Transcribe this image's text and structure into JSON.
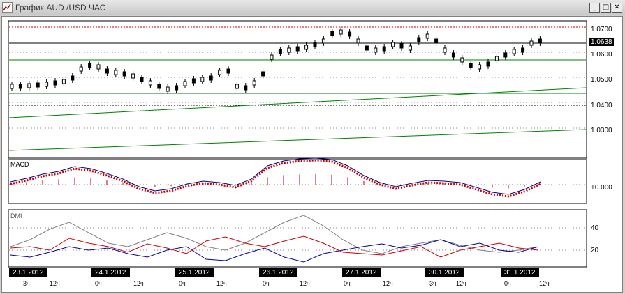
{
  "window": {
    "title": "График AUD /USD  ЧАС",
    "buttons": {
      "minimize": "_",
      "maximize": "□",
      "close": "✕"
    }
  },
  "price_panel": {
    "price_labels": [
      "1.0700",
      "1.0600",
      "1.0500",
      "1.0400",
      "1.0300"
    ],
    "current_price": "1.0638"
  },
  "macd_panel": {
    "label": "MACD",
    "zero_label": "+0.000"
  },
  "dmi_panel": {
    "label": "DMI",
    "level_labels": [
      "40",
      "20"
    ]
  },
  "time_axis": {
    "dates": [
      "23.1.2012",
      "24.1.2012",
      "25.1.2012",
      "26.1.2012",
      "27.1.2012",
      "30.1.2012",
      "31.1.2012"
    ],
    "hour_ticks": [
      "3ч",
      "12ч",
      "0ч",
      "12ч",
      "0ч",
      "12ч",
      "0ч",
      "12ч",
      "0ч",
      "12ч",
      "3ч",
      "12ч",
      "0ч",
      "12ч"
    ]
  },
  "colors": {
    "price_line": "#000000",
    "macd_line": "#000080",
    "signal_line": "#cc0000",
    "dmi_plus": "#0000a0",
    "dmi_minus": "#cc0000",
    "adx": "#808080",
    "support_lines": "#008000",
    "resistance_line": "#cc0000"
  }
}
